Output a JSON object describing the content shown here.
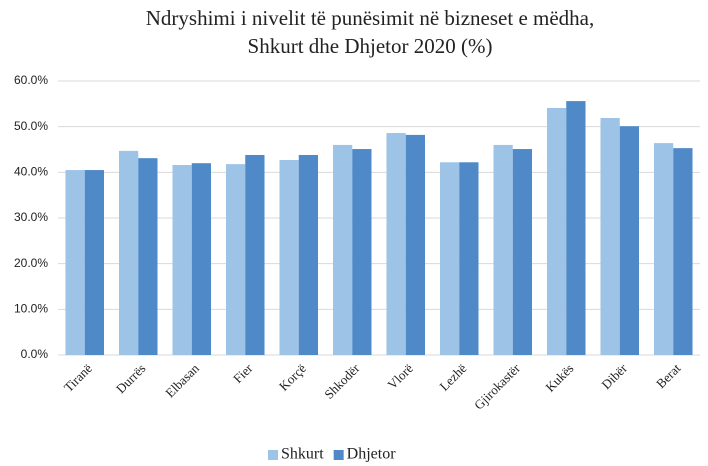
{
  "chart_data": {
    "type": "bar",
    "title": [
      "Ndryshimi i nivelit  të punësimit në bizneset e mëdha,",
      "Shkurt dhe Dhjetor 2020 (%)"
    ],
    "categories": [
      "Tiranë",
      "Durrës",
      "Elbasan",
      "Fier",
      "Korçë",
      "Shkodër",
      "Vlorë",
      "Lezhë",
      "Gjirokastër",
      "Kukës",
      "Dibër",
      "Berat"
    ],
    "series": [
      {
        "name": "Shkurt",
        "color": "#9dc3e6",
        "values": [
          40.5,
          44.7,
          41.6,
          41.8,
          42.7,
          46.0,
          48.6,
          42.2,
          46.0,
          54.1,
          51.9,
          46.4
        ]
      },
      {
        "name": "Dhjetor",
        "color": "#4f89c7",
        "values": [
          40.5,
          43.1,
          42.0,
          43.8,
          43.8,
          45.1,
          48.2,
          42.2,
          45.1,
          55.6,
          50.1,
          45.3
        ]
      }
    ],
    "ylim": [
      0,
      60
    ],
    "yticks": [
      {
        "value": 0,
        "label": "0.0%"
      },
      {
        "value": 10,
        "label": "10.0%"
      },
      {
        "value": 20,
        "label": "20.0%"
      },
      {
        "value": 30,
        "label": "30.0%"
      },
      {
        "value": 40,
        "label": "40.0%"
      },
      {
        "value": 50,
        "label": "50.0%"
      },
      {
        "value": 60,
        "label": "60.0%"
      }
    ],
    "grid": true,
    "legend": "bottom"
  }
}
